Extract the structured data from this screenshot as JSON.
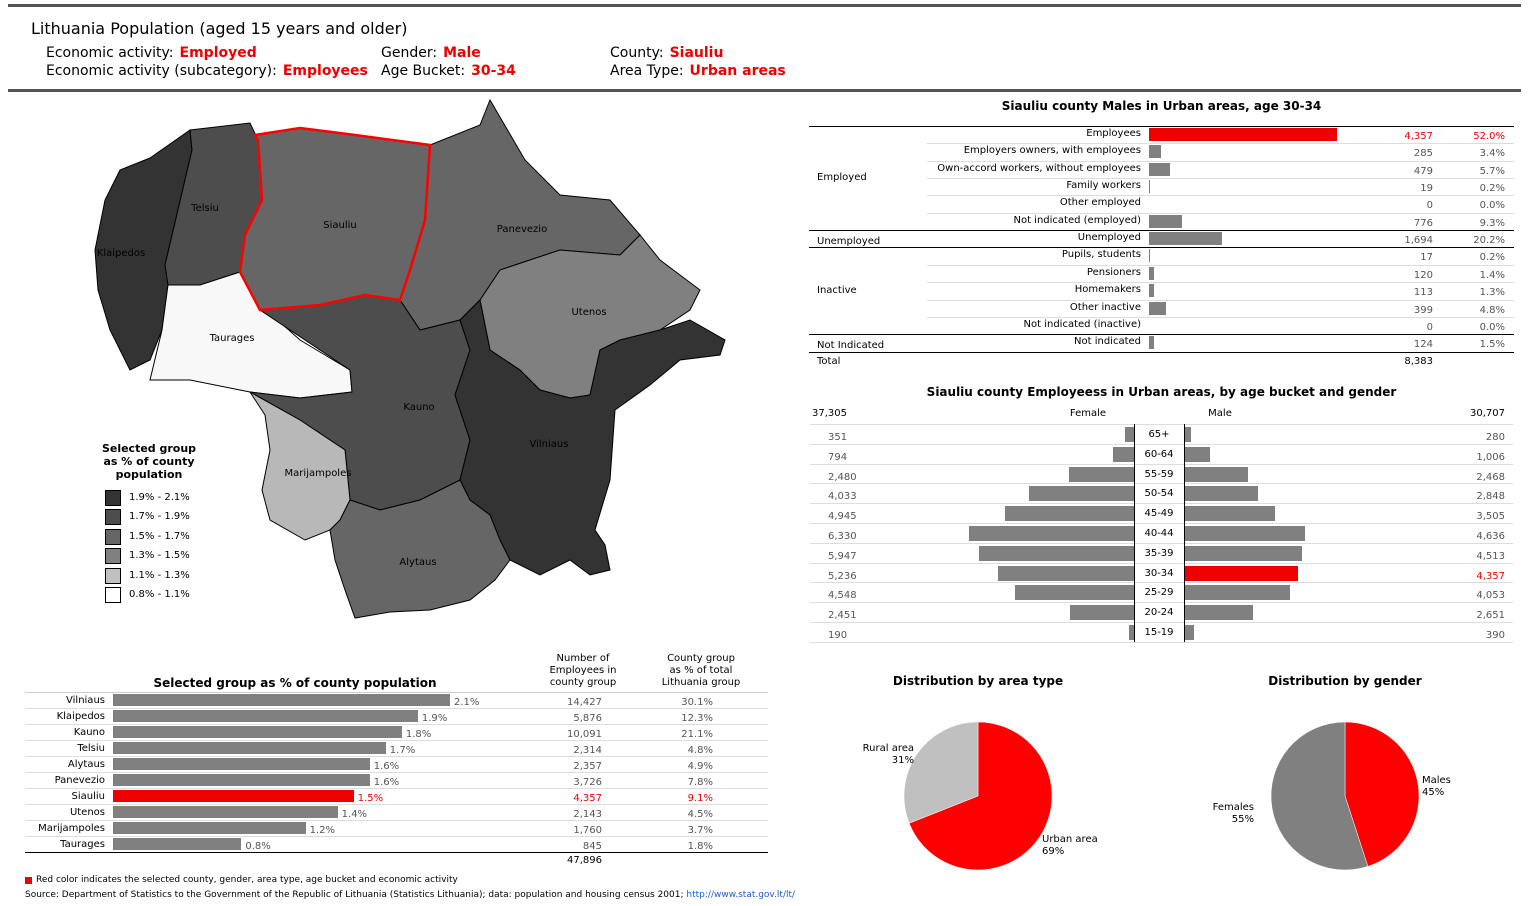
{
  "header": {
    "title": "Lithuania Population (aged 15 years and older)",
    "filters": [
      {
        "label": "Economic activity:",
        "value": "Employed"
      },
      {
        "label": "Economic activity (subcategory):",
        "value": "Employees"
      },
      {
        "label": "Gender:",
        "value": "Male"
      },
      {
        "label": "Age Bucket:",
        "value": "30-34"
      },
      {
        "label": "County:",
        "value": "Siauliu"
      },
      {
        "label": "Area Type:",
        "value": "Urban areas"
      }
    ]
  },
  "map": {
    "counties": [
      "Klaipedos",
      "Telsiu",
      "Siauliu",
      "Panevezio",
      "Utenos",
      "Taurages",
      "Kauno",
      "Vilniaus",
      "Marijampoles",
      "Alytaus"
    ],
    "fill_colors": {
      "Klaipedos": "#333333",
      "Telsiu": "#4d4d4d",
      "Siauliu": "#666666",
      "Panevezio": "#666666",
      "Utenos": "#808080",
      "Taurages": "#f8f8f8",
      "Kauno": "#4d4d4d",
      "Vilniaus": "#333333",
      "Marijampoles": "#b8b8b8",
      "Alytaus": "#666666"
    },
    "selected": "Siauliu",
    "legend": {
      "title": [
        "Selected group",
        "as % of county",
        "population"
      ],
      "items": [
        {
          "label": "1.9% - 2.1%",
          "color": "#333333"
        },
        {
          "label": "1.7% - 1.9%",
          "color": "#4d4d4d"
        },
        {
          "label": "1.5% - 1.7%",
          "color": "#666666"
        },
        {
          "label": "1.3% - 1.5%",
          "color": "#808080"
        },
        {
          "label": "1.1% - 1.3%",
          "color": "#c0c0c0"
        },
        {
          "label": "0.8% - 1.1%",
          "color": "#ffffff"
        }
      ]
    }
  },
  "county_table": {
    "title": "Selected group as % of county population",
    "col2_header": [
      "Number of",
      "Employees in",
      "county group"
    ],
    "col3_header": [
      "County group",
      "as % of total",
      "Lithuania group"
    ],
    "total": "47,896"
  },
  "activity_table": {
    "title": "Siauliu county Males in Urban areas, age 30-34",
    "groups": [
      {
        "name": "Employed"
      },
      {
        "name": "Unemployed"
      },
      {
        "name": "Inactive"
      },
      {
        "name": "Not Indicated"
      }
    ],
    "total_label": "Total",
    "total_value": "8,383"
  },
  "pyramid": {
    "title": "Siauliu county Employeess in Urban areas, by age bucket and gender",
    "female_label": "Female",
    "male_label": "Male",
    "female_total": "37,305",
    "male_total": "30,707"
  },
  "footer": {
    "note": "Red color indicates the selected county, gender, area type, age bucket and economic activity",
    "source": "Source: Department of Statistics to the Government of the Republic of Lithuania (Statistics Lithuania); data: population and housing census 2001;",
    "link": "http://www.stat.gov.lt/lt/"
  },
  "chart_data": [
    {
      "type": "bar",
      "title": "Selected group as % of county population",
      "categories": [
        "Vilniaus",
        "Klaipedos",
        "Kauno",
        "Telsiu",
        "Alytaus",
        "Panevezio",
        "Siauliu",
        "Utenos",
        "Marijampoles",
        "Taurages"
      ],
      "values": [
        2.1,
        1.9,
        1.8,
        1.7,
        1.6,
        1.6,
        1.5,
        1.4,
        1.2,
        0.8
      ],
      "value_labels": [
        "2.1%",
        "1.9%",
        "1.8%",
        "1.7%",
        "1.6%",
        "1.6%",
        "1.5%",
        "1.4%",
        "1.2%",
        "0.8%"
      ],
      "counts": [
        "14,427",
        "5,876",
        "10,091",
        "2,314",
        "2,357",
        "3,726",
        "4,357",
        "2,143",
        "1,760",
        "845"
      ],
      "shares": [
        "30.1%",
        "12.3%",
        "21.1%",
        "4.8%",
        "4.9%",
        "7.8%",
        "9.1%",
        "4.5%",
        "3.7%",
        "1.8%"
      ],
      "highlight": "Siauliu",
      "xlim": [
        0,
        2.5
      ]
    },
    {
      "type": "bar",
      "title": "Siauliu county Males in Urban areas, age 30-34",
      "rows": [
        {
          "group": "Employed",
          "label": "Employees",
          "value": 4357,
          "count": "4,357",
          "pct": "52.0%",
          "highlight": true
        },
        {
          "group": "Employed",
          "label": "Employers owners, with employees",
          "value": 285,
          "count": "285",
          "pct": "3.4%"
        },
        {
          "group": "Employed",
          "label": "Own-accord workers, without employees",
          "value": 479,
          "count": "479",
          "pct": "5.7%"
        },
        {
          "group": "Employed",
          "label": "Family workers",
          "value": 19,
          "count": "19",
          "pct": "0.2%"
        },
        {
          "group": "Employed",
          "label": "Other employed",
          "value": 0,
          "count": "0",
          "pct": "0.0%"
        },
        {
          "group": "Employed",
          "label": "Not indicated (employed)",
          "value": 776,
          "count": "776",
          "pct": "9.3%"
        },
        {
          "group": "Unemployed",
          "label": "Unemployed",
          "value": 1694,
          "count": "1,694",
          "pct": "20.2%"
        },
        {
          "group": "Inactive",
          "label": "Pupils, students",
          "value": 17,
          "count": "17",
          "pct": "0.2%"
        },
        {
          "group": "Inactive",
          "label": "Pensioners",
          "value": 120,
          "count": "120",
          "pct": "1.4%"
        },
        {
          "group": "Inactive",
          "label": "Homemakers",
          "value": 113,
          "count": "113",
          "pct": "1.3%"
        },
        {
          "group": "Inactive",
          "label": "Other inactive",
          "value": 399,
          "count": "399",
          "pct": "4.8%"
        },
        {
          "group": "Inactive",
          "label": "Not indicated (inactive)",
          "value": 0,
          "count": "0",
          "pct": "0.0%"
        },
        {
          "group": "Not Indicated",
          "label": "Not indicated",
          "value": 124,
          "count": "124",
          "pct": "1.5%"
        }
      ],
      "xlim": [
        0,
        4357
      ]
    },
    {
      "type": "bar",
      "title": "Siauliu county Employeess in Urban areas, by age bucket and gender",
      "categories": [
        "65+",
        "60-64",
        "55-59",
        "50-54",
        "45-49",
        "40-44",
        "35-39",
        "30-34",
        "25-29",
        "20-24",
        "15-19"
      ],
      "series": [
        {
          "name": "Female",
          "values": [
            351,
            794,
            2480,
            4033,
            4945,
            6330,
            5947,
            5236,
            4548,
            2451,
            190
          ],
          "labels": [
            "351",
            "794",
            "2,480",
            "4,033",
            "4,945",
            "6,330",
            "5,947",
            "5,236",
            "4,548",
            "2,451",
            "190"
          ]
        },
        {
          "name": "Male",
          "values": [
            280,
            1006,
            2468,
            2848,
            3505,
            4636,
            4513,
            4357,
            4053,
            2651,
            390
          ],
          "labels": [
            "280",
            "1,006",
            "2,468",
            "2,848",
            "3,505",
            "4,636",
            "4,513",
            "4,357",
            "4,053",
            "2,651",
            "390"
          ]
        }
      ],
      "highlight": {
        "series": "Male",
        "category": "30-34"
      },
      "xlim": [
        0,
        6330
      ]
    },
    {
      "type": "pie",
      "title": "Distribution by area type",
      "slices": [
        {
          "label": "Urban area",
          "value": 69,
          "text": "69%",
          "color": "#ff0000"
        },
        {
          "label": "Rural area",
          "value": 31,
          "text": "31%",
          "color": "#c0c0c0"
        }
      ]
    },
    {
      "type": "pie",
      "title": "Distribution by gender",
      "slices": [
        {
          "label": "Males",
          "value": 45,
          "text": "45%",
          "color": "#ff0000"
        },
        {
          "label": "Females",
          "value": 55,
          "text": "55%",
          "color": "#808080"
        }
      ]
    }
  ]
}
